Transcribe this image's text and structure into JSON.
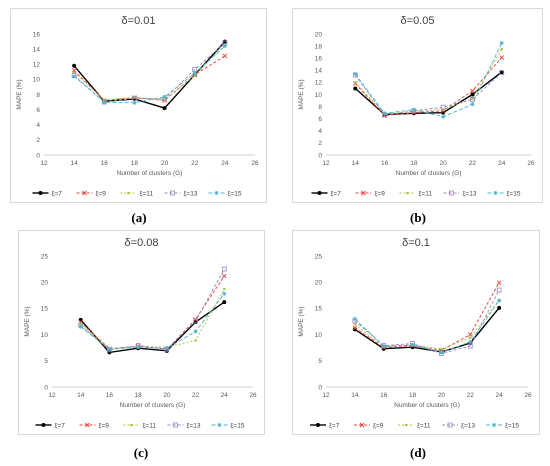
{
  "chart_data": [
    {
      "type": "line",
      "panel_label": "(a)",
      "title": "δ=0.01",
      "xlabel": "Number of clusters (G)",
      "ylabel": "MAPE (%)",
      "xlim": [
        12,
        26
      ],
      "xticks": [
        12,
        14,
        16,
        18,
        20,
        22,
        24,
        26
      ],
      "ylim": [
        0,
        16
      ],
      "yticks": [
        0,
        2,
        4,
        6,
        8,
        10,
        12,
        14,
        16
      ],
      "grid": false,
      "legend": "bottom",
      "x": [
        14,
        16,
        18,
        20,
        22,
        24
      ],
      "series": [
        {
          "name": "ξ=7",
          "values": [
            11.8,
            7.1,
            7.4,
            6.2,
            10.6,
            15.0
          ]
        },
        {
          "name": "ξ=9",
          "values": [
            11.2,
            7.2,
            7.6,
            7.2,
            10.6,
            13.1
          ]
        },
        {
          "name": "ξ=11",
          "values": [
            10.9,
            7.3,
            7.6,
            7.3,
            10.5,
            14.6
          ]
        },
        {
          "name": "ξ=13",
          "values": [
            10.5,
            7.0,
            7.5,
            7.4,
            11.3,
            14.8
          ]
        },
        {
          "name": "ξ=15",
          "values": [
            10.4,
            7.0,
            6.9,
            7.7,
            10.8,
            14.4
          ]
        }
      ]
    },
    {
      "type": "line",
      "panel_label": "(b)",
      "title": "δ=0.05",
      "xlabel": "Number of clusters (G)",
      "ylabel": "MAPE (%)",
      "xlim": [
        12,
        26
      ],
      "xticks": [
        12,
        14,
        16,
        18,
        20,
        22,
        24,
        26
      ],
      "ylim": [
        0,
        20
      ],
      "yticks": [
        0,
        2,
        4,
        6,
        8,
        10,
        12,
        14,
        16,
        18,
        20
      ],
      "grid": false,
      "legend": "bottom",
      "x": [
        14,
        16,
        18,
        20,
        22,
        24
      ],
      "series": [
        {
          "name": "ξ=7",
          "values": [
            11.0,
            6.7,
            6.9,
            7.0,
            10.0,
            13.7
          ]
        },
        {
          "name": "ξ=9",
          "values": [
            11.8,
            6.5,
            7.0,
            7.3,
            10.6,
            16.1
          ]
        },
        {
          "name": "ξ=11",
          "values": [
            12.0,
            6.8,
            7.2,
            7.5,
            9.3,
            17.5
          ]
        },
        {
          "name": "ξ=13",
          "values": [
            13.2,
            6.6,
            7.3,
            7.9,
            9.2,
            13.6
          ]
        },
        {
          "name": "ξ=15",
          "values": [
            13.4,
            6.9,
            7.5,
            6.3,
            8.4,
            18.5
          ]
        }
      ]
    },
    {
      "type": "line",
      "panel_label": "(c)",
      "title": "δ=0.08",
      "xlabel": "Number of clusters (G)",
      "ylabel": "MAPE (%)",
      "xlim": [
        12,
        26
      ],
      "xticks": [
        12,
        14,
        16,
        18,
        20,
        22,
        24,
        26
      ],
      "ylim": [
        0,
        25
      ],
      "yticks": [
        0,
        5,
        10,
        15,
        20,
        25
      ],
      "grid": false,
      "legend": "bottom",
      "x": [
        14,
        16,
        18,
        20,
        22,
        24
      ],
      "series": [
        {
          "name": "ξ=7",
          "values": [
            12.8,
            6.6,
            7.4,
            6.9,
            12.4,
            16.2
          ]
        },
        {
          "name": "ξ=9",
          "values": [
            12.4,
            7.3,
            7.8,
            7.2,
            12.9,
            21.2
          ]
        },
        {
          "name": "ξ=11",
          "values": [
            12.1,
            7.3,
            7.8,
            7.6,
            8.9,
            18.7
          ]
        },
        {
          "name": "ξ=13",
          "values": [
            11.8,
            7.1,
            7.9,
            7.2,
            12.6,
            22.5
          ]
        },
        {
          "name": "ξ=15",
          "values": [
            11.5,
            7.2,
            7.6,
            7.4,
            10.6,
            17.8
          ]
        }
      ]
    },
    {
      "type": "line",
      "panel_label": "(d)",
      "title": "δ=0.1",
      "xlabel": "Number of clusters (G)",
      "ylabel": "MAPE (%)",
      "xlim": [
        12,
        26
      ],
      "xticks": [
        12,
        14,
        16,
        18,
        20,
        22,
        24,
        26
      ],
      "ylim": [
        0,
        25
      ],
      "yticks": [
        0,
        5,
        10,
        15,
        20,
        25
      ],
      "grid": false,
      "legend": "bottom",
      "x": [
        14,
        16,
        18,
        20,
        22,
        24
      ],
      "series": [
        {
          "name": "ξ=7",
          "values": [
            11.0,
            7.3,
            7.6,
            6.7,
            8.4,
            15.1
          ]
        },
        {
          "name": "ξ=9",
          "values": [
            11.3,
            7.6,
            7.9,
            7.0,
            10.0,
            19.9
          ]
        },
        {
          "name": "ξ=11",
          "values": [
            12.0,
            7.6,
            8.1,
            7.2,
            9.4,
            16.6
          ]
        },
        {
          "name": "ξ=13",
          "values": [
            12.6,
            7.9,
            8.3,
            6.4,
            7.8,
            18.5
          ]
        },
        {
          "name": "ξ=15",
          "values": [
            13.0,
            7.8,
            8.0,
            6.6,
            8.6,
            16.5
          ]
        }
      ]
    }
  ],
  "styles": {
    "series_colors": [
      "#000000",
      "#e8413a",
      "#a8c63c",
      "#9b86c4",
      "#4bb8d0"
    ],
    "axis_color": "#bfbfbf",
    "text_color": "#595959"
  }
}
